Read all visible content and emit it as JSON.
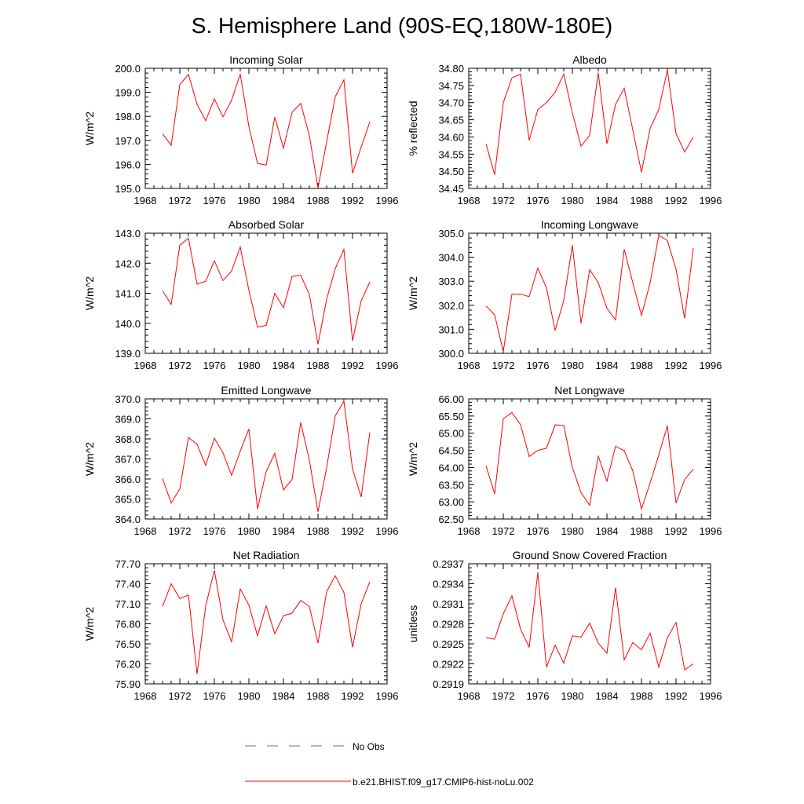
{
  "title": "S. Hemisphere Land (90S-EQ,180W-180E)",
  "colors": {
    "series": "#ff0000",
    "obs": "#6666cc",
    "axis": "#000000"
  },
  "chart_data": [
    {
      "type": "line",
      "title": "Incoming Solar",
      "ylabel": "W/m^2",
      "xlim": [
        1968,
        1996
      ],
      "xticks": [
        "1968",
        "1972",
        "1976",
        "1980",
        "1984",
        "1988",
        "1992",
        "1996"
      ],
      "ylim": [
        195.0,
        200.0
      ],
      "yticks": [
        "195.0",
        "196.0",
        "197.0",
        "198.0",
        "199.0",
        "200.0"
      ],
      "x": [
        1970,
        1971,
        1972,
        1973,
        1974,
        1975,
        1976,
        1977,
        1978,
        1979,
        1980,
        1981,
        1982,
        1983,
        1984,
        1985,
        1986,
        1987,
        1988,
        1989,
        1990,
        1991,
        1992,
        1993,
        1994
      ],
      "series": [
        {
          "values": [
            197.28,
            196.79,
            199.32,
            199.75,
            198.5,
            197.82,
            198.73,
            197.98,
            198.68,
            199.76,
            197.58,
            196.04,
            195.97,
            197.97,
            196.68,
            198.17,
            198.54,
            197.2,
            195.02,
            196.94,
            198.82,
            199.52,
            195.63,
            196.72,
            197.77
          ]
        }
      ]
    },
    {
      "type": "line",
      "title": "Albedo",
      "ylabel": "% reflected",
      "xlim": [
        1968,
        1996
      ],
      "xticks": [
        "1968",
        "1972",
        "1976",
        "1980",
        "1984",
        "1988",
        "1992",
        "1996"
      ],
      "ylim": [
        34.45,
        34.8
      ],
      "yticks": [
        "34.45",
        "34.50",
        "34.55",
        "34.60",
        "34.65",
        "34.70",
        "34.75",
        "34.80"
      ],
      "x": [
        1970,
        1971,
        1972,
        1973,
        1974,
        1975,
        1976,
        1977,
        1978,
        1979,
        1980,
        1981,
        1982,
        1983,
        1984,
        1985,
        1986,
        1987,
        1988,
        1989,
        1990,
        1991,
        1992,
        1993,
        1994
      ],
      "series": [
        {
          "values": [
            34.58,
            34.49,
            34.7,
            34.772,
            34.783,
            34.59,
            34.68,
            34.7,
            34.73,
            34.783,
            34.67,
            34.573,
            34.605,
            34.787,
            34.58,
            34.695,
            34.742,
            34.62,
            34.497,
            34.625,
            34.68,
            34.795,
            34.61,
            34.556,
            34.6
          ]
        }
      ]
    },
    {
      "type": "line",
      "title": "Absorbed Solar",
      "ylabel": "W/m^2",
      "xlim": [
        1968,
        1996
      ],
      "xticks": [
        "1968",
        "1972",
        "1976",
        "1980",
        "1984",
        "1988",
        "1992",
        "1996"
      ],
      "ylim": [
        139.0,
        143.0
      ],
      "yticks": [
        "139.0",
        "140.0",
        "141.0",
        "142.0",
        "143.0"
      ],
      "x": [
        1970,
        1971,
        1972,
        1973,
        1974,
        1975,
        1976,
        1977,
        1978,
        1979,
        1980,
        1981,
        1982,
        1983,
        1984,
        1985,
        1986,
        1987,
        1988,
        1989,
        1990,
        1991,
        1992,
        1993,
        1994
      ],
      "series": [
        {
          "values": [
            141.08,
            140.63,
            142.6,
            142.83,
            141.3,
            141.4,
            142.08,
            141.42,
            141.74,
            142.54,
            141.1,
            139.87,
            139.93,
            141.0,
            140.52,
            141.56,
            141.6,
            140.96,
            139.3,
            140.8,
            141.82,
            142.46,
            139.42,
            140.75,
            141.38
          ]
        }
      ]
    },
    {
      "type": "line",
      "title": "Incoming Longwave",
      "ylabel": "W/m^2",
      "xlim": [
        1968,
        1996
      ],
      "xticks": [
        "1968",
        "1972",
        "1976",
        "1980",
        "1984",
        "1988",
        "1992",
        "1996"
      ],
      "ylim": [
        300.0,
        305.0
      ],
      "yticks": [
        "300.0",
        "301.0",
        "302.0",
        "303.0",
        "304.0",
        "305.0"
      ],
      "x": [
        1970,
        1971,
        1972,
        1973,
        1974,
        1975,
        1976,
        1977,
        1978,
        1979,
        1980,
        1981,
        1982,
        1983,
        1984,
        1985,
        1986,
        1987,
        1988,
        1989,
        1990,
        1991,
        1992,
        1993,
        1994
      ],
      "series": [
        {
          "values": [
            301.97,
            301.6,
            300.08,
            302.46,
            302.46,
            302.36,
            303.55,
            302.72,
            300.95,
            302.2,
            304.5,
            301.25,
            303.48,
            302.94,
            301.87,
            301.39,
            304.33,
            302.93,
            301.58,
            302.93,
            304.91,
            304.7,
            303.5,
            301.45,
            304.38
          ]
        }
      ]
    },
    {
      "type": "line",
      "title": "Emitted Longwave",
      "ylabel": "W/m^2",
      "xlim": [
        1968,
        1996
      ],
      "xticks": [
        "1968",
        "1972",
        "1976",
        "1980",
        "1984",
        "1988",
        "1992",
        "1996"
      ],
      "ylim": [
        364.0,
        370.0
      ],
      "yticks": [
        "364.0",
        "365.0",
        "366.0",
        "367.0",
        "368.0",
        "369.0",
        "370.0"
      ],
      "x": [
        1970,
        1971,
        1972,
        1973,
        1974,
        1975,
        1976,
        1977,
        1978,
        1979,
        1980,
        1981,
        1982,
        1983,
        1984,
        1985,
        1986,
        1987,
        1988,
        1989,
        1990,
        1991,
        1992,
        1993,
        1994
      ],
      "series": [
        {
          "values": [
            366.02,
            364.8,
            365.5,
            368.07,
            367.73,
            366.68,
            368.03,
            367.3,
            366.18,
            367.4,
            368.5,
            364.5,
            366.37,
            367.28,
            365.45,
            365.98,
            368.82,
            366.94,
            364.36,
            366.56,
            369.15,
            369.88,
            366.5,
            365.1,
            368.32
          ]
        }
      ]
    },
    {
      "type": "line",
      "title": "Net Longwave",
      "ylabel": "W/m^2",
      "xlim": [
        1968,
        1996
      ],
      "xticks": [
        "1968",
        "1972",
        "1976",
        "1980",
        "1984",
        "1988",
        "1992",
        "1996"
      ],
      "ylim": [
        62.5,
        66.0
      ],
      "yticks": [
        "62.50",
        "63.00",
        "63.50",
        "64.00",
        "64.50",
        "65.00",
        "65.50",
        "66.00"
      ],
      "x": [
        1970,
        1971,
        1972,
        1973,
        1974,
        1975,
        1976,
        1977,
        1978,
        1979,
        1980,
        1981,
        1982,
        1983,
        1984,
        1985,
        1986,
        1987,
        1988,
        1989,
        1990,
        1991,
        1992,
        1993,
        1994
      ],
      "series": [
        {
          "values": [
            64.05,
            63.23,
            65.42,
            65.6,
            65.25,
            64.32,
            64.5,
            64.56,
            65.24,
            65.23,
            64.0,
            63.27,
            62.9,
            64.33,
            63.6,
            64.62,
            64.49,
            63.9,
            62.79,
            63.55,
            64.36,
            65.22,
            62.96,
            63.65,
            63.95
          ]
        }
      ]
    },
    {
      "type": "line",
      "title": "Net Radiation",
      "ylabel": "W/m^2",
      "xlim": [
        1968,
        1996
      ],
      "xticks": [
        "1968",
        "1972",
        "1976",
        "1980",
        "1984",
        "1988",
        "1992",
        "1996"
      ],
      "ylim": [
        75.9,
        77.7
      ],
      "yticks": [
        "75.90",
        "76.20",
        "76.50",
        "76.80",
        "77.10",
        "77.40",
        "77.70"
      ],
      "x": [
        1970,
        1971,
        1972,
        1973,
        1974,
        1975,
        1976,
        1977,
        1978,
        1979,
        1980,
        1981,
        1982,
        1983,
        1984,
        1985,
        1986,
        1987,
        1988,
        1989,
        1990,
        1991,
        1992,
        1993,
        1994
      ],
      "series": [
        {
          "values": [
            77.06,
            77.4,
            77.18,
            77.23,
            76.05,
            77.07,
            77.6,
            76.86,
            76.53,
            77.32,
            77.08,
            76.62,
            77.07,
            76.65,
            76.92,
            76.96,
            77.15,
            77.06,
            76.51,
            77.28,
            77.52,
            77.27,
            76.45,
            77.1,
            77.43
          ]
        }
      ]
    },
    {
      "type": "line",
      "title": "Ground Snow Covered Fraction",
      "ylabel": "unitless",
      "xlim": [
        1968,
        1996
      ],
      "xticks": [
        "1968",
        "1972",
        "1976",
        "1980",
        "1984",
        "1988",
        "1992",
        "1996"
      ],
      "ylim": [
        0.2919,
        0.2937
      ],
      "yticks": [
        "0.2919",
        "0.2922",
        "0.2925",
        "0.2928",
        "0.2931",
        "0.2934",
        "0.2937"
      ],
      "x": [
        1970,
        1971,
        1972,
        1973,
        1974,
        1975,
        1976,
        1977,
        1978,
        1979,
        1980,
        1981,
        1982,
        1983,
        1984,
        1985,
        1986,
        1987,
        1988,
        1989,
        1990,
        1991,
        1992,
        1993,
        1994
      ],
      "series": [
        {
          "values": [
            0.29259,
            0.29257,
            0.29295,
            0.29322,
            0.29272,
            0.29245,
            0.29357,
            0.29215,
            0.29248,
            0.29221,
            0.29262,
            0.2926,
            0.29281,
            0.29251,
            0.29236,
            0.29334,
            0.29226,
            0.29252,
            0.29241,
            0.29266,
            0.29215,
            0.29259,
            0.29282,
            0.29211,
            0.2922
          ]
        }
      ]
    }
  ],
  "legend": [
    {
      "label": "No Obs",
      "style": "dashed"
    },
    {
      "label": "b.e21.BHIST.f09_g17.CMIP6-hist-noLu.002",
      "style": "solid"
    }
  ]
}
